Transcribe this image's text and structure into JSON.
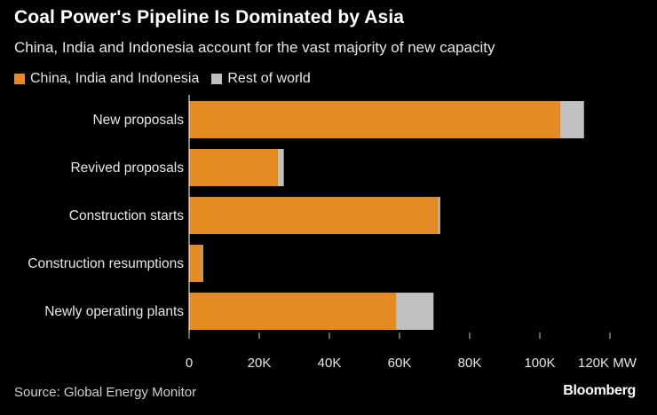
{
  "header": {
    "title": "Coal Power's Pipeline Is Dominated by Asia",
    "subtitle": "China, India and Indonesia account for the vast majority of new capacity"
  },
  "legend": {
    "items": [
      {
        "label": "China, India and Indonesia",
        "color": "#e68a24"
      },
      {
        "label": "Rest of world",
        "color": "#bfbfbf"
      }
    ]
  },
  "chart_data": {
    "type": "bar",
    "orientation": "horizontal",
    "stacked": true,
    "categories": [
      "New proposals",
      "Revived proposals",
      "Construction starts",
      "Construction resumptions",
      "Newly operating plants"
    ],
    "series": [
      {
        "name": "China, India and Indonesia",
        "color": "#e68a24",
        "values": [
          105800,
          25300,
          71000,
          3600,
          59000
        ]
      },
      {
        "name": "Rest of world",
        "color": "#bfbfbf",
        "values": [
          6800,
          1700,
          600,
          400,
          10700
        ]
      }
    ],
    "xlim": [
      0,
      120000
    ],
    "xticks": [
      0,
      20000,
      40000,
      60000,
      80000,
      100000,
      120000
    ],
    "xtick_labels": [
      "0",
      "20K",
      "40K",
      "60K",
      "80K",
      "100K",
      "120K MW"
    ],
    "xlabel": "",
    "ylabel": ""
  },
  "footer": {
    "source": "Source: Global Energy Monitor",
    "brand": "Bloomberg"
  }
}
